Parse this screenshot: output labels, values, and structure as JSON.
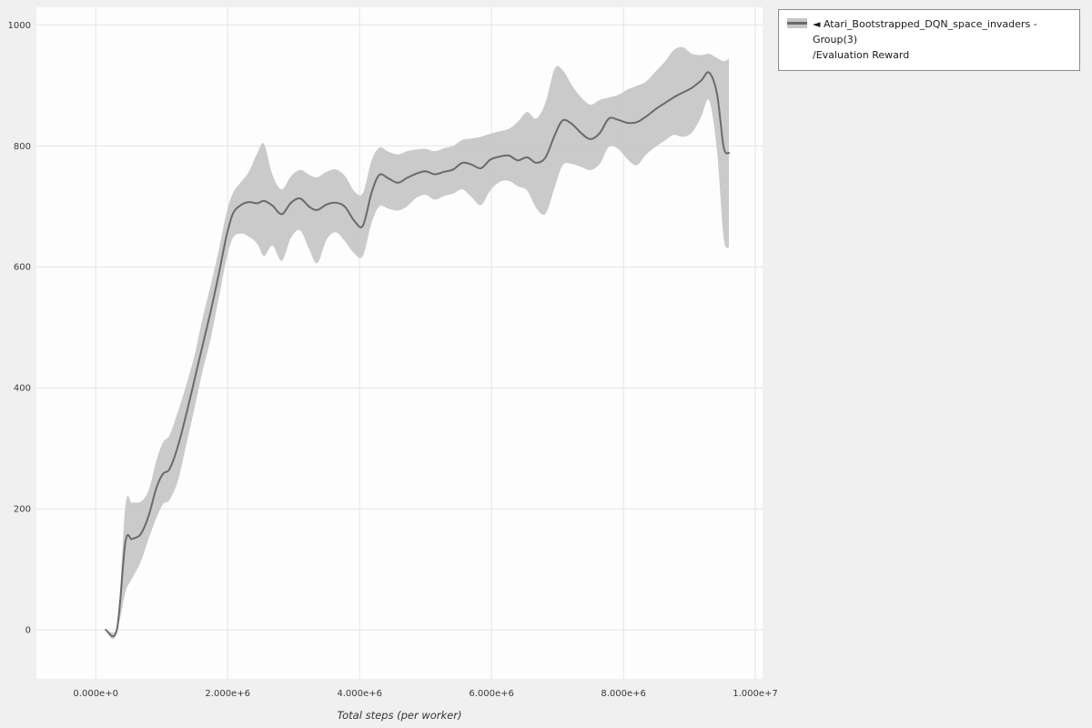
{
  "legend": {
    "items": [
      {
        "label": "◄ Atari_Bootstrapped_DQN_space_invaders - Group(3)",
        "sublabel": "/Evaluation Reward",
        "line_color": "#6a6a6a",
        "band_color": "#c6c6c6"
      }
    ]
  },
  "chart_data": {
    "type": "line",
    "title": "",
    "xlabel": "Total steps (per worker)",
    "ylabel": "",
    "xlim": [
      -900000,
      10110000
    ],
    "ylim": [
      -81,
      1029
    ],
    "grid": true,
    "legend_position": "top-right",
    "x_ticks": [
      {
        "value": 0,
        "label": "0.000e+0"
      },
      {
        "value": 2000000,
        "label": "2.000e+6"
      },
      {
        "value": 4000000,
        "label": "4.000e+6"
      },
      {
        "value": 6000000,
        "label": "6.000e+6"
      },
      {
        "value": 8000000,
        "label": "8.000e+6"
      },
      {
        "value": 10000000,
        "label": "1.000e+7"
      }
    ],
    "y_ticks": [
      {
        "value": 0,
        "label": "0"
      },
      {
        "value": 200,
        "label": "200"
      },
      {
        "value": 400,
        "label": "400"
      },
      {
        "value": 600,
        "label": "600"
      },
      {
        "value": 800,
        "label": "800"
      },
      {
        "value": 1000,
        "label": "1000"
      }
    ],
    "series": [
      {
        "name": "Atari_Bootstrapped_DQN_space_invaders - Group(3)/Evaluation Reward",
        "line_color": "#6a6a6a",
        "band_color": "#c6c6c6",
        "x": [
          150000,
          320000,
          450000,
          550000,
          680000,
          800000,
          920000,
          1020000,
          1120000,
          1250000,
          1380000,
          1500000,
          1620000,
          1740000,
          1860000,
          1980000,
          2080000,
          2200000,
          2320000,
          2450000,
          2550000,
          2680000,
          2820000,
          2960000,
          3100000,
          3240000,
          3360000,
          3500000,
          3640000,
          3780000,
          3920000,
          4050000,
          4180000,
          4300000,
          4440000,
          4580000,
          4720000,
          4860000,
          5000000,
          5140000,
          5280000,
          5420000,
          5560000,
          5700000,
          5840000,
          5980000,
          6120000,
          6260000,
          6400000,
          6540000,
          6680000,
          6820000,
          6960000,
          7080000,
          7220000,
          7360000,
          7500000,
          7640000,
          7780000,
          7920000,
          8060000,
          8200000,
          8340000,
          8480000,
          8620000,
          8760000,
          8900000,
          9040000,
          9180000,
          9300000,
          9420000,
          9520000,
          9600000
        ],
        "mean": [
          0,
          0,
          145,
          150,
          158,
          188,
          235,
          258,
          266,
          305,
          360,
          415,
          470,
          525,
          585,
          650,
          688,
          702,
          707,
          705,
          709,
          701,
          687,
          706,
          713,
          699,
          694,
          703,
          706,
          699,
          676,
          668,
          722,
          752,
          746,
          739,
          747,
          754,
          758,
          753,
          757,
          761,
          772,
          769,
          763,
          777,
          782,
          784,
          776,
          781,
          772,
          781,
          818,
          842,
          836,
          821,
          811,
          821,
          845,
          843,
          838,
          839,
          848,
          860,
          870,
          880,
          888,
          896,
          908,
          921,
          885,
          798,
          788
        ],
        "lower": [
          0,
          0,
          62,
          85,
          112,
          150,
          185,
          208,
          215,
          248,
          310,
          368,
          428,
          480,
          545,
          612,
          648,
          655,
          650,
          638,
          618,
          635,
          610,
          648,
          660,
          628,
          606,
          645,
          657,
          642,
          622,
          618,
          672,
          700,
          696,
          693,
          700,
          714,
          719,
          711,
          717,
          721,
          728,
          715,
          702,
          726,
          740,
          742,
          733,
          726,
          697,
          688,
          732,
          768,
          770,
          765,
          760,
          770,
          798,
          795,
          778,
          768,
          785,
          798,
          808,
          818,
          815,
          822,
          848,
          875,
          790,
          648,
          632
        ],
        "upper": [
          0,
          0,
          205,
          210,
          212,
          230,
          280,
          310,
          322,
          362,
          408,
          455,
          515,
          568,
          625,
          688,
          722,
          740,
          757,
          788,
          803,
          752,
          728,
          750,
          760,
          752,
          748,
          757,
          761,
          750,
          725,
          722,
          775,
          797,
          790,
          786,
          791,
          794,
          795,
          791,
          796,
          800,
          810,
          812,
          815,
          820,
          824,
          828,
          840,
          856,
          845,
          872,
          928,
          925,
          900,
          880,
          868,
          876,
          880,
          884,
          893,
          899,
          906,
          922,
          938,
          958,
          963,
          952,
          950,
          952,
          945,
          940,
          944
        ]
      }
    ]
  }
}
